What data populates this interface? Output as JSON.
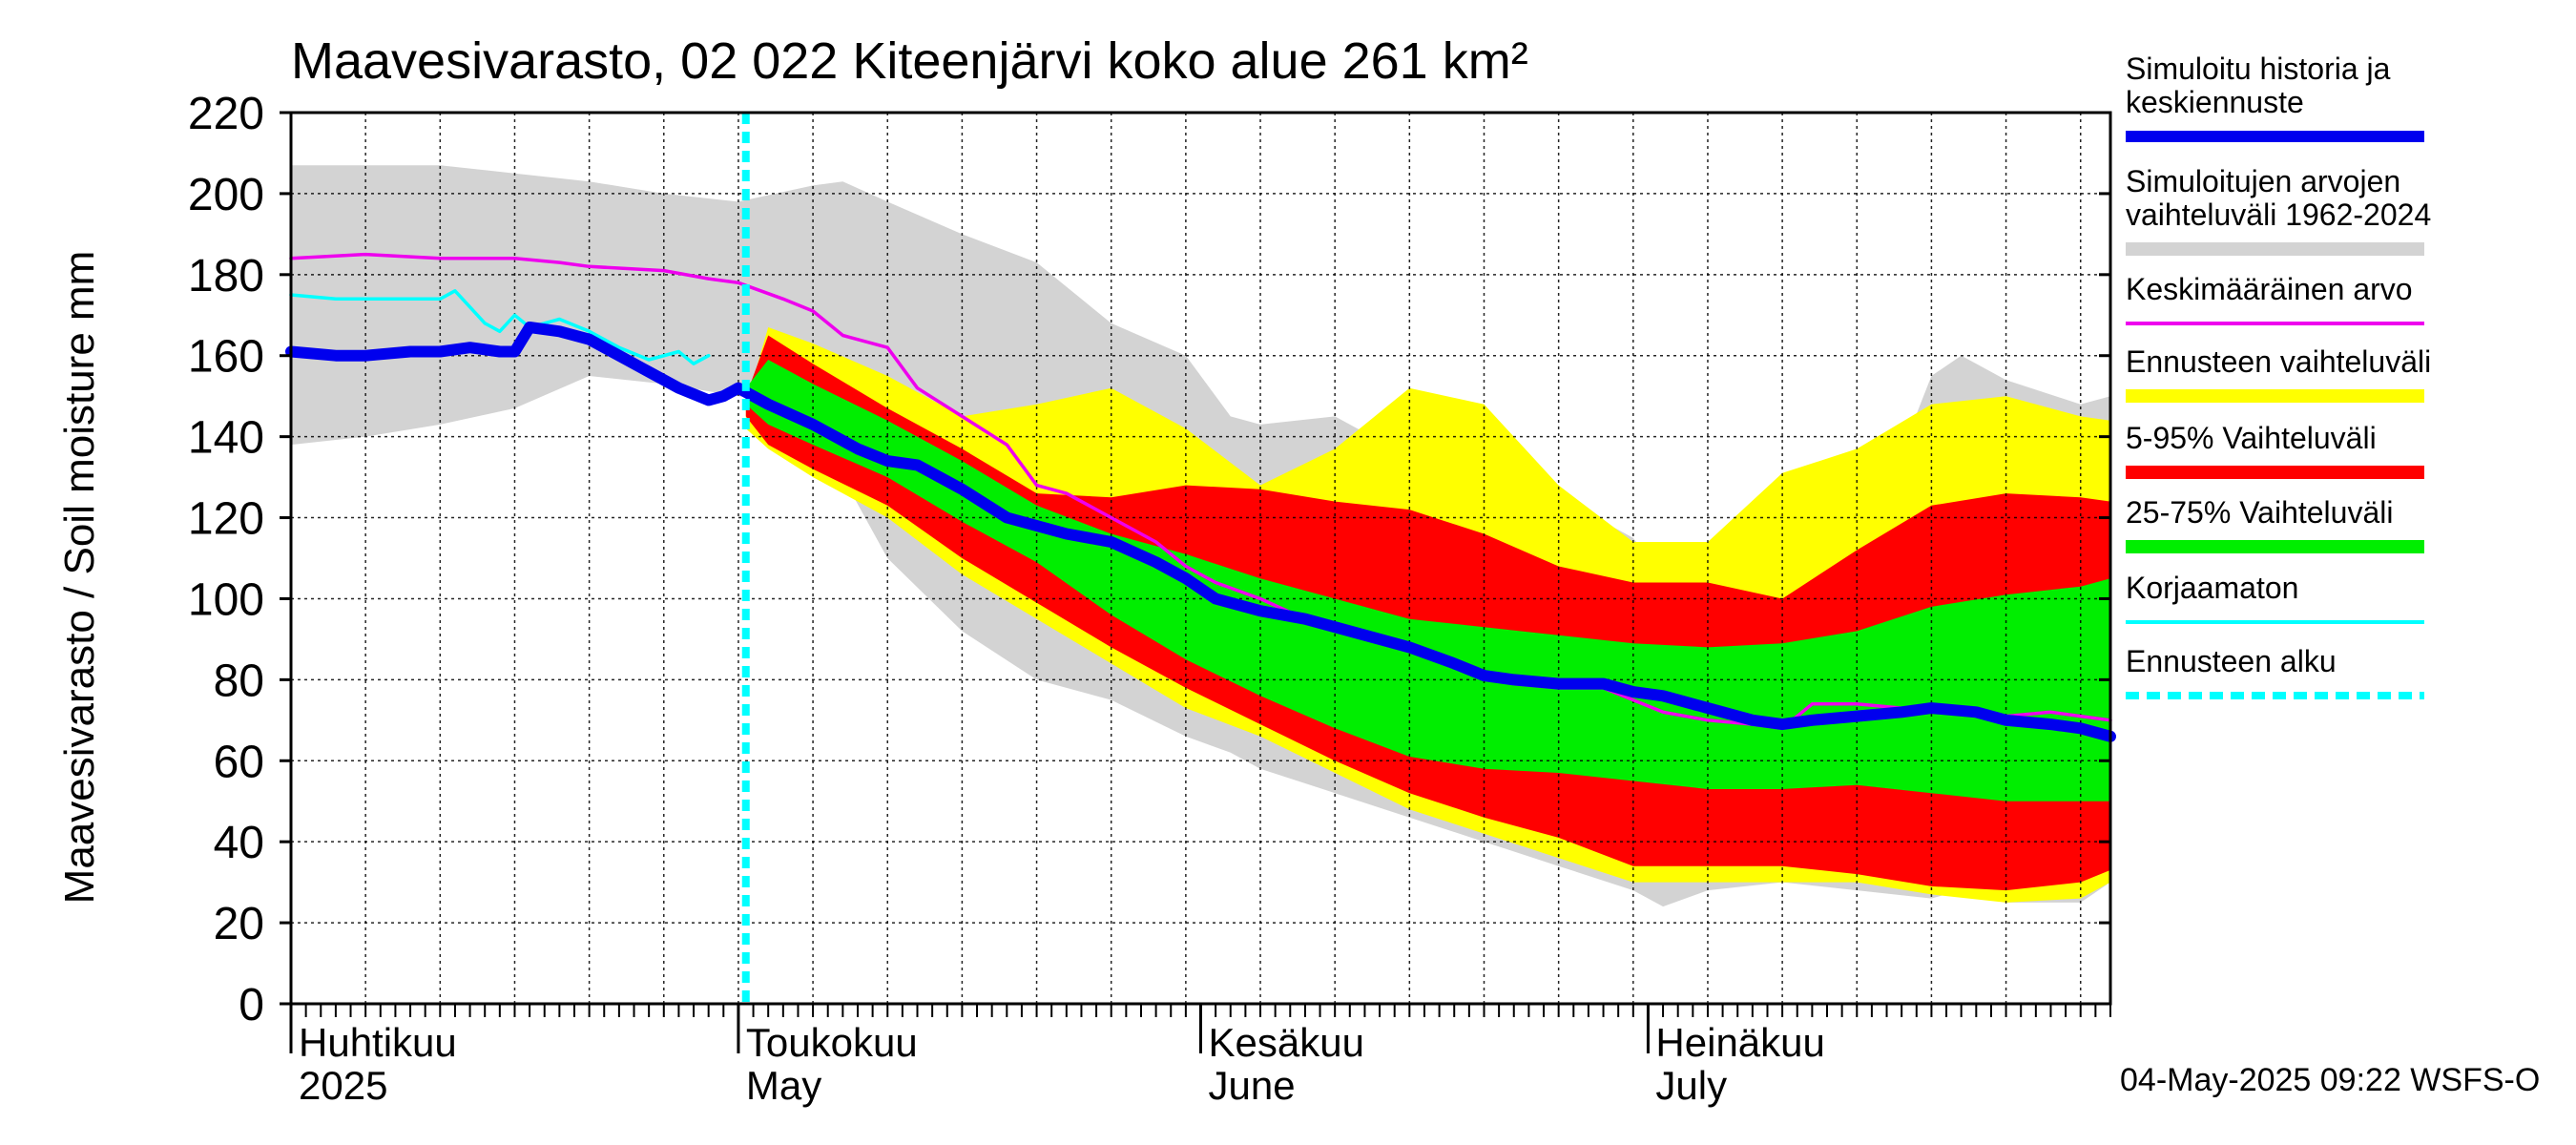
{
  "chart_data": {
    "type": "area",
    "title": "Maavesivarasto, 02 022 Kiteenjärvi koko alue 261 km²",
    "ylabel": "Maavesivarasto / Soil moisture   mm",
    "ylim": [
      0,
      220
    ],
    "y_ticks": [
      0,
      20,
      40,
      60,
      80,
      100,
      120,
      140,
      160,
      180,
      200,
      220
    ],
    "xlim_day": [
      0,
      122
    ],
    "x_label_positions_day": [
      0,
      30,
      61,
      91
    ],
    "x_labels": [
      {
        "fi": "Huhtikuu",
        "en": "2025"
      },
      {
        "fi": "Toukokuu",
        "en": "May"
      },
      {
        "fi": "Kesäkuu",
        "en": "June"
      },
      {
        "fi": "Heinäkuu",
        "en": "July"
      }
    ],
    "forecast_start_day": 30.5,
    "footer": "04-May-2025 09:22 WSFS-O",
    "colors": {
      "sim_range": "#d3d3d3",
      "forecast_range": "#ffff00",
      "p5_95": "#ff0000",
      "p25_75": "#00ee00",
      "median": "#0000ee",
      "mean": "#ee00ee",
      "uncorrected": "#00ffff",
      "forecast_start": "#00ffff"
    },
    "legend": [
      {
        "label": "Simuloitu historia ja keskiennuste",
        "lines": [
          "Simuloitu historia ja",
          "keskiennuste"
        ],
        "color": "#0000ee",
        "style": "thick"
      },
      {
        "label": "Simuloitujen arvojen vaihteluväli 1962-2024",
        "lines": [
          "Simuloitujen arvojen",
          "vaihteluväli 1962-2024"
        ],
        "color": "#d3d3d3",
        "style": "band"
      },
      {
        "label": "Keskimääräinen arvo",
        "lines": [
          "Keskimääräinen arvo"
        ],
        "color": "#ee00ee",
        "style": "thin"
      },
      {
        "label": "Ennusteen vaihteluväli",
        "lines": [
          "Ennusteen vaihteluväli"
        ],
        "color": "#ffff00",
        "style": "band"
      },
      {
        "label": "5-95% Vaihteluväli",
        "lines": [
          "5-95% Vaihteluväli"
        ],
        "color": "#ff0000",
        "style": "band"
      },
      {
        "label": "25-75% Vaihteluväli",
        "lines": [
          "25-75% Vaihteluväli"
        ],
        "color": "#00ee00",
        "style": "band"
      },
      {
        "label": "Korjaamaton",
        "lines": [
          "Korjaamaton"
        ],
        "color": "#00ffff",
        "style": "thin"
      },
      {
        "label": "Ennusteen alku",
        "lines": [
          "Ennusteen alku"
        ],
        "color": "#00ffff",
        "style": "dashed"
      }
    ],
    "series": {
      "sim_range": {
        "x": [
          0,
          5,
          10,
          15,
          20,
          25,
          30,
          35,
          37,
          40,
          45,
          50,
          55,
          60,
          63,
          65,
          70,
          75,
          80,
          85,
          90,
          92,
          95,
          100,
          105,
          110,
          112,
          115,
          120,
          122
        ],
        "low": [
          138,
          140,
          143,
          147,
          155,
          153,
          150,
          148,
          130,
          110,
          92,
          80,
          75,
          66,
          62,
          58,
          52,
          46,
          40,
          34,
          28,
          24,
          28,
          30,
          28,
          26,
          28,
          25,
          25,
          30
        ],
        "high": [
          207,
          207,
          207,
          205,
          203,
          200,
          198,
          202,
          203,
          198,
          190,
          183,
          168,
          160,
          145,
          143,
          145,
          135,
          132,
          125,
          115,
          105,
          108,
          110,
          108,
          155,
          160,
          154,
          148,
          150
        ]
      },
      "forecast_range": {
        "x": [
          30.5,
          32,
          35,
          40,
          45,
          50,
          55,
          60,
          65,
          70,
          75,
          80,
          85,
          90,
          95,
          100,
          105,
          110,
          115,
          120,
          122
        ],
        "low": [
          142,
          137,
          130,
          120,
          106,
          95,
          84,
          73,
          66,
          57,
          48,
          42,
          36,
          30,
          30,
          30,
          30,
          27,
          25,
          26,
          30
        ],
        "high": [
          148,
          167,
          163,
          155,
          145,
          148,
          152,
          142,
          128,
          137,
          152,
          148,
          128,
          114,
          114,
          131,
          137,
          148,
          150,
          145,
          144
        ]
      },
      "p5_95": {
        "x": [
          30.5,
          32,
          35,
          40,
          45,
          50,
          55,
          60,
          65,
          70,
          75,
          80,
          85,
          90,
          95,
          100,
          105,
          110,
          115,
          120,
          122
        ],
        "low": [
          145,
          138,
          132,
          123,
          110,
          99,
          88,
          78,
          69,
          60,
          52,
          46,
          41,
          34,
          34,
          34,
          32,
          29,
          28,
          30,
          33
        ],
        "high": [
          150,
          165,
          158,
          147,
          137,
          126,
          125,
          128,
          127,
          124,
          122,
          116,
          108,
          104,
          104,
          100,
          112,
          123,
          126,
          125,
          124
        ]
      },
      "p25_75": {
        "x": [
          30.5,
          32,
          35,
          40,
          45,
          50,
          55,
          60,
          65,
          70,
          75,
          80,
          85,
          90,
          95,
          100,
          105,
          110,
          115,
          120,
          122
        ],
        "low": [
          148,
          143,
          138,
          130,
          119,
          109,
          96,
          85,
          76,
          68,
          61,
          58,
          57,
          55,
          53,
          53,
          54,
          52,
          50,
          50,
          50
        ],
        "high": [
          152,
          159,
          153,
          144,
          134,
          123,
          116,
          111,
          105,
          100,
          95,
          93,
          91,
          89,
          88,
          89,
          92,
          98,
          101,
          103,
          105
        ]
      },
      "median": {
        "x": [
          0,
          3,
          5,
          8,
          10,
          12,
          14,
          15,
          16,
          18,
          20,
          22,
          24,
          26,
          28,
          29,
          30,
          31,
          32,
          35,
          38,
          40,
          42,
          45,
          48,
          50,
          52,
          55,
          58,
          60,
          62,
          65,
          68,
          70,
          73,
          75,
          78,
          80,
          82,
          85,
          88,
          90,
          92,
          95,
          98,
          100,
          102,
          105,
          108,
          110,
          113,
          115,
          118,
          120,
          122
        ],
        "y": [
          161,
          160,
          160,
          161,
          161,
          162,
          161,
          161,
          167,
          166,
          164,
          160,
          156,
          152,
          149,
          150,
          152,
          150,
          148,
          143,
          137,
          134,
          133,
          127,
          120,
          118,
          116,
          114,
          109,
          105,
          100,
          97,
          95,
          93,
          90,
          88,
          84,
          81,
          80,
          79,
          79,
          77,
          76,
          73,
          70,
          69,
          70,
          71,
          72,
          73,
          72,
          70,
          69,
          68,
          66
        ]
      },
      "mean": {
        "x": [
          0,
          5,
          10,
          15,
          18,
          20,
          25,
          28,
          30,
          33,
          35,
          37,
          40,
          42,
          45,
          48,
          50,
          52,
          55,
          58,
          60,
          62,
          65,
          68,
          70,
          72,
          75,
          78,
          80,
          82,
          85,
          88,
          90,
          92,
          95,
          98,
          100,
          102,
          105,
          108,
          110,
          112,
          115,
          118,
          120,
          122
        ],
        "y": [
          184,
          185,
          184,
          184,
          183,
          182,
          181,
          179,
          178,
          174,
          171,
          165,
          162,
          152,
          145,
          138,
          128,
          126,
          120,
          114,
          108,
          104,
          100,
          95,
          93,
          91,
          87,
          84,
          81,
          79,
          78,
          78,
          75,
          72,
          70,
          69,
          68,
          74,
          74,
          73,
          72,
          72,
          71,
          72,
          71,
          70
        ]
      },
      "uncorrected": {
        "x": [
          0,
          3,
          5,
          8,
          10,
          11,
          12,
          13,
          14,
          15,
          16,
          17,
          18,
          20,
          22,
          24,
          26,
          27,
          28
        ],
        "y": [
          175,
          174,
          174,
          174,
          174,
          176,
          172,
          168,
          166,
          170,
          167,
          168,
          169,
          166,
          162,
          159,
          161,
          158,
          160
        ]
      }
    }
  }
}
